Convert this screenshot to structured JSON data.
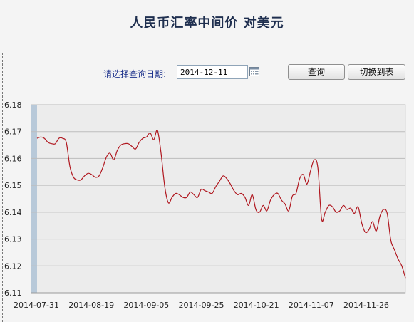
{
  "page": {
    "title": "人民币汇率中间价  对美元"
  },
  "query": {
    "label": "请选择查询日期:",
    "date_value": "2014-12-11",
    "query_button": "查询",
    "table_button": "切换到表"
  },
  "chart_data": {
    "type": "line",
    "title": "",
    "xlabel": "",
    "ylabel": "",
    "ylim": [
      6.11,
      6.18
    ],
    "grid": true,
    "y_ticks": [
      6.18,
      6.17,
      6.16,
      6.15,
      6.14,
      6.13,
      6.12,
      6.11
    ],
    "x_tick_labels": [
      "2014-07-31",
      "2014-08-19",
      "2014-09-05",
      "2014-09-25",
      "2014-10-21",
      "2014-11-07",
      "2014-11-26"
    ],
    "line_color": "#b0171f",
    "series": [
      {
        "name": "",
        "values": [
          6.1675,
          6.168,
          6.1675,
          6.166,
          6.1655,
          6.1655,
          6.1675,
          6.1675,
          6.166,
          6.157,
          6.153,
          6.152,
          6.152,
          6.1535,
          6.1545,
          6.154,
          6.153,
          6.1535,
          6.1565,
          6.1605,
          6.162,
          6.1595,
          6.163,
          6.165,
          6.1655,
          6.1655,
          6.1645,
          6.1635,
          6.166,
          6.1675,
          6.168,
          6.1695,
          6.167,
          6.1705,
          6.162,
          6.1495,
          6.1435,
          6.1455,
          6.147,
          6.1465,
          6.1455,
          6.1455,
          6.1475,
          6.1465,
          6.1455,
          6.1485,
          6.148,
          6.1475,
          6.147,
          6.1495,
          6.1515,
          6.1535,
          6.1525,
          6.1505,
          6.148,
          6.1465,
          6.147,
          6.1455,
          6.1425,
          6.1465,
          6.141,
          6.14,
          6.1425,
          6.1405,
          6.1445,
          6.1465,
          6.147,
          6.1445,
          6.143,
          6.1405,
          6.146,
          6.147,
          6.1525,
          6.154,
          6.1505,
          6.1555,
          6.1595,
          6.1565,
          6.1375,
          6.14,
          6.1425,
          6.142,
          6.14,
          6.1405,
          6.1425,
          6.141,
          6.1415,
          6.1395,
          6.142,
          6.136,
          6.1325,
          6.1335,
          6.1365,
          6.133,
          6.1385,
          6.141,
          6.1395,
          6.1295,
          6.126,
          6.1225,
          6.12,
          6.1155
        ]
      }
    ]
  }
}
